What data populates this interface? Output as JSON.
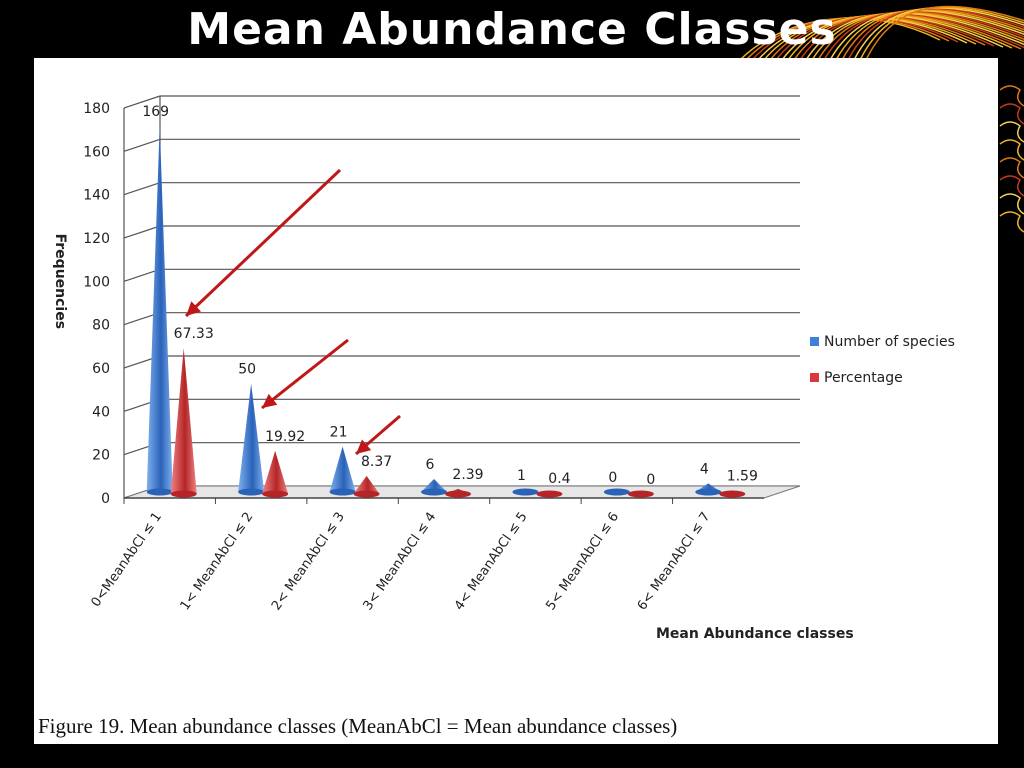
{
  "slide": {
    "title": "Mean Abundance Classes",
    "caption": "Figure 19. Mean abundance classes (MeanAbCl = Mean abundance classes)"
  },
  "colors": {
    "background": "#000000",
    "series_blue": "#3f7fd8",
    "series_red": "#d9393c",
    "arrow": "#c01818",
    "grid": "#444444"
  },
  "chart_data": {
    "type": "bar",
    "style": "3d-cone",
    "categories": [
      "0<MeanAbCl ≤ 1",
      "1< MeanAbCl ≤ 2",
      "2< MeanAbCl ≤ 3",
      "3< MeanAbCl ≤ 4",
      "4< MeanAbCl ≤ 5",
      "5< MeanAbCl ≤ 6",
      "6< MeanAbCl ≤ 7"
    ],
    "series": [
      {
        "name": "Number of species",
        "values": [
          169,
          50,
          21,
          6,
          1,
          0,
          4
        ],
        "labels": [
          "169",
          "50",
          "21",
          "6",
          "1",
          "0",
          "4"
        ]
      },
      {
        "name": "Percentage",
        "values": [
          67.33,
          19.92,
          8.37,
          2.39,
          0.4,
          0,
          1.59
        ],
        "labels": [
          "67.33",
          "19.92",
          "8.37",
          "2.39",
          "0.4",
          "0",
          "1.59"
        ]
      }
    ],
    "xlabel": "Mean Abundance classes",
    "ylabel": "Frequencies",
    "ylim": [
      0,
      180
    ],
    "yticks": [
      "0",
      "20",
      "40",
      "60",
      "80",
      "100",
      "120",
      "140",
      "160",
      "180"
    ],
    "grid": true,
    "legend": "right"
  }
}
